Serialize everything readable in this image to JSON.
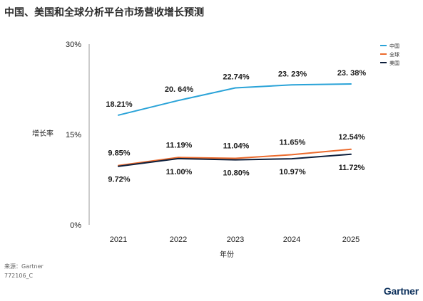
{
  "title": "中国、美国和全球分析平台市场营收增长预测",
  "source": "来源：Gartner",
  "doc_id": "772106_C",
  "logo_text": "Gartner",
  "chart_data": {
    "type": "line",
    "title": "中国、美国和全球分析平台市场营收增长预测",
    "xlabel": "年份",
    "ylabel": "增长率",
    "categories": [
      "2021",
      "2022",
      "2023",
      "2024",
      "2025"
    ],
    "yticks": [
      "0%",
      "15%",
      "30%"
    ],
    "ytick_values": [
      0,
      15,
      30
    ],
    "ylim": [
      0,
      30
    ],
    "legend_position": "top-right",
    "series": [
      {
        "name": "中国",
        "color": "#2aa3d8",
        "values": [
          18.21,
          20.64,
          22.74,
          23.23,
          23.38
        ],
        "labels": [
          "18.21%",
          "20. 64%",
          "22.74%",
          "23. 23%",
          "23. 38%"
        ]
      },
      {
        "name": "全球",
        "color": "#ec6b2d",
        "values": [
          9.85,
          11.19,
          11.04,
          11.65,
          12.54
        ],
        "labels": [
          "9.85%",
          "11.19%",
          "11.04%",
          "11.65%",
          "12.54%"
        ]
      },
      {
        "name": "美国",
        "color": "#0d1f3c",
        "values": [
          9.72,
          11.0,
          10.8,
          10.97,
          11.72
        ],
        "labels": [
          "9.72%",
          "11.00%",
          "10.80%",
          "10.97%",
          "11.72%"
        ]
      }
    ]
  }
}
